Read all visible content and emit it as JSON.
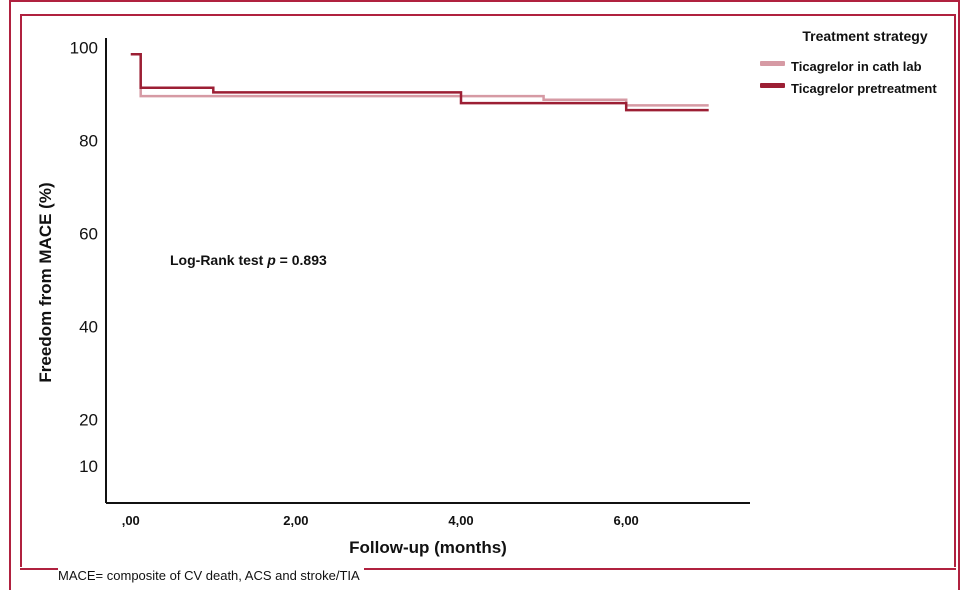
{
  "chart_data": {
    "type": "line",
    "title": "",
    "xlabel": "Follow-up (months)",
    "ylabel": "Freedom from MACE (%)",
    "xlim": [
      -0.3,
      7.5
    ],
    "ylim": [
      2,
      102
    ],
    "x_ticks": [
      0,
      2,
      4,
      6
    ],
    "x_tick_labels": [
      ",00",
      "2,00",
      "4,00",
      "6,00"
    ],
    "y_ticks": [
      10,
      20,
      40,
      60,
      80,
      100
    ],
    "y_tick_labels": [
      "10",
      "20",
      "40",
      "60",
      "80",
      "100"
    ],
    "grid": false,
    "legend_title": "Treatment strategy",
    "legend_position": "top-right",
    "annotation": {
      "prefix": "Log-Rank test ",
      "p": "p",
      "suffix": " = 0.893"
    },
    "series": [
      {
        "name": "Ticagrelor in cath lab",
        "color": "#d69aa4",
        "x": [
          0.0,
          0.12,
          0.12,
          4.0,
          4.0,
          5.0,
          5.0,
          6.0,
          6.0,
          7.0
        ],
        "y": [
          98.5,
          98.5,
          89.5,
          89.5,
          89.5,
          89.5,
          88.7,
          88.7,
          87.5,
          87.5
        ]
      },
      {
        "name": "Ticagrelor pretreatment",
        "color": "#9c1f34",
        "x": [
          0.0,
          0.12,
          0.12,
          1.0,
          1.0,
          4.0,
          4.0,
          6.0,
          6.0,
          7.0
        ],
        "y": [
          98.5,
          98.5,
          91.3,
          91.3,
          90.3,
          90.3,
          88.0,
          88.0,
          86.5,
          86.5
        ]
      }
    ]
  },
  "footnote": "MACE= composite of CV death, ACS and stroke/TIA"
}
